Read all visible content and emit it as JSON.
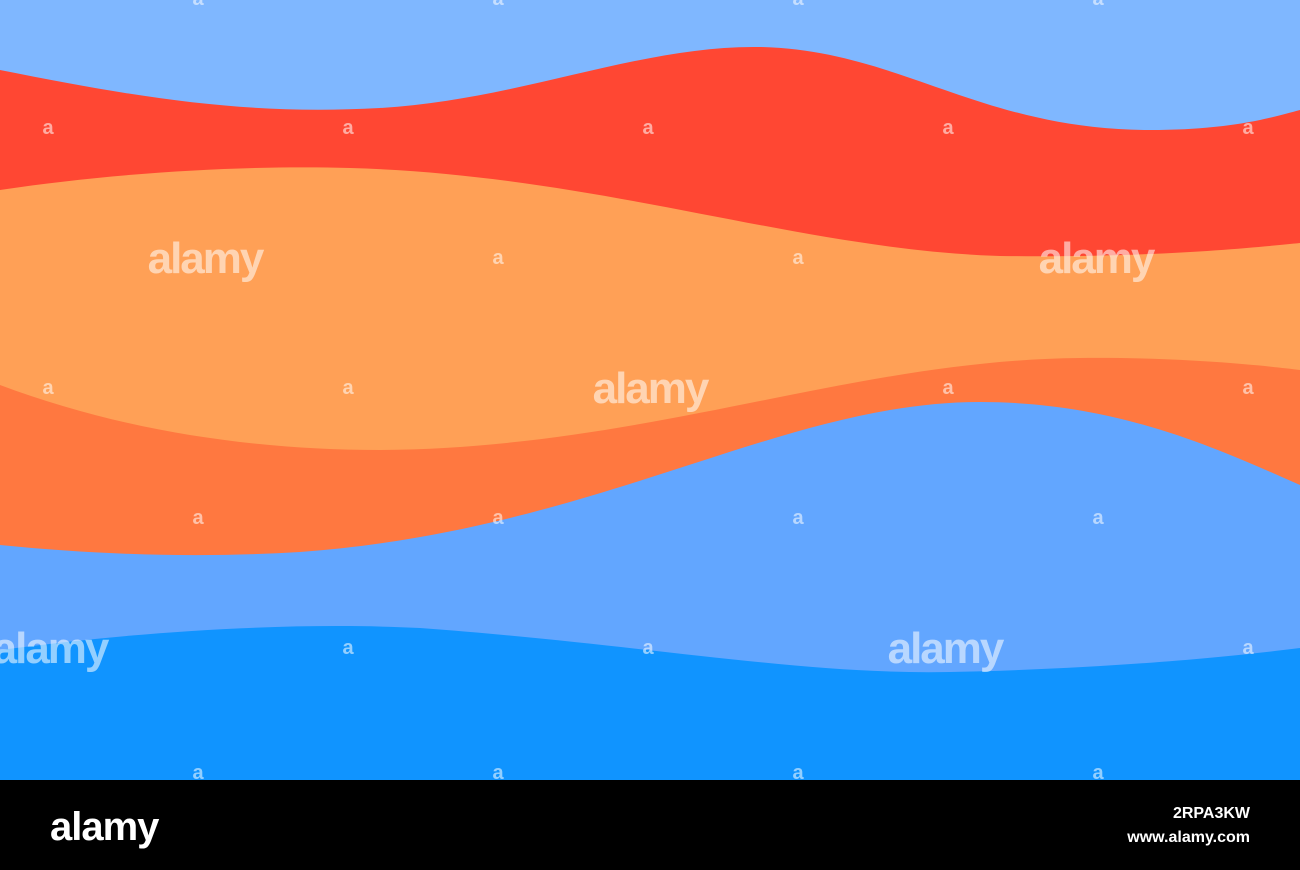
{
  "watermark": "alamy",
  "watermark_mark": "a",
  "footer": {
    "logo": "alamy",
    "image_id": "2RPA3KW",
    "url": "www.alamy.com"
  }
}
